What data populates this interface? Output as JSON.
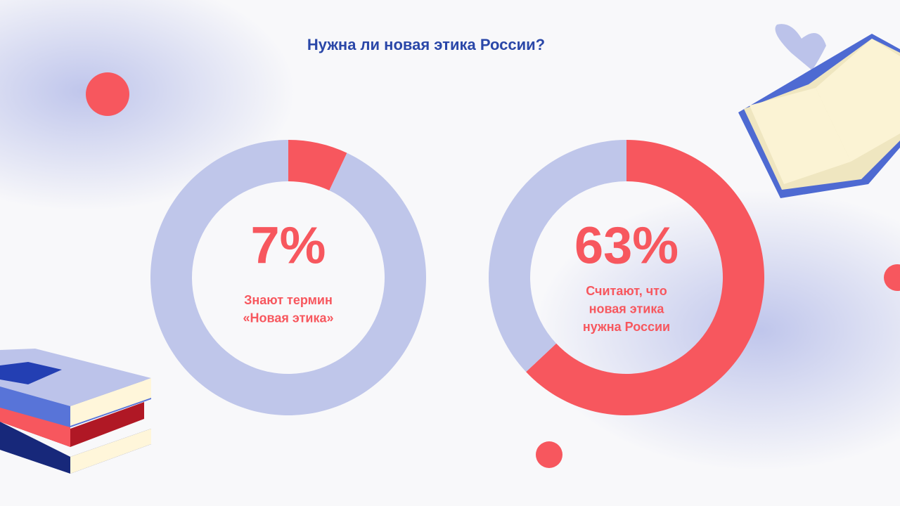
{
  "title": "Нужна ли новая этика России?",
  "chart_data": [
    {
      "type": "donut",
      "values": [
        7,
        93
      ],
      "value_labels": [
        "7%",
        null
      ],
      "colors": [
        "#f7575e",
        "#bfc6ea"
      ],
      "label": [
        "Знают термин",
        "«Новая этика»"
      ]
    },
    {
      "type": "donut",
      "values": [
        63,
        37
      ],
      "value_labels": [
        "63%",
        null
      ],
      "colors": [
        "#f7575e",
        "#bfc6ea"
      ],
      "label": [
        "Считают, что",
        "новая этика",
        "нужна России"
      ]
    }
  ]
}
